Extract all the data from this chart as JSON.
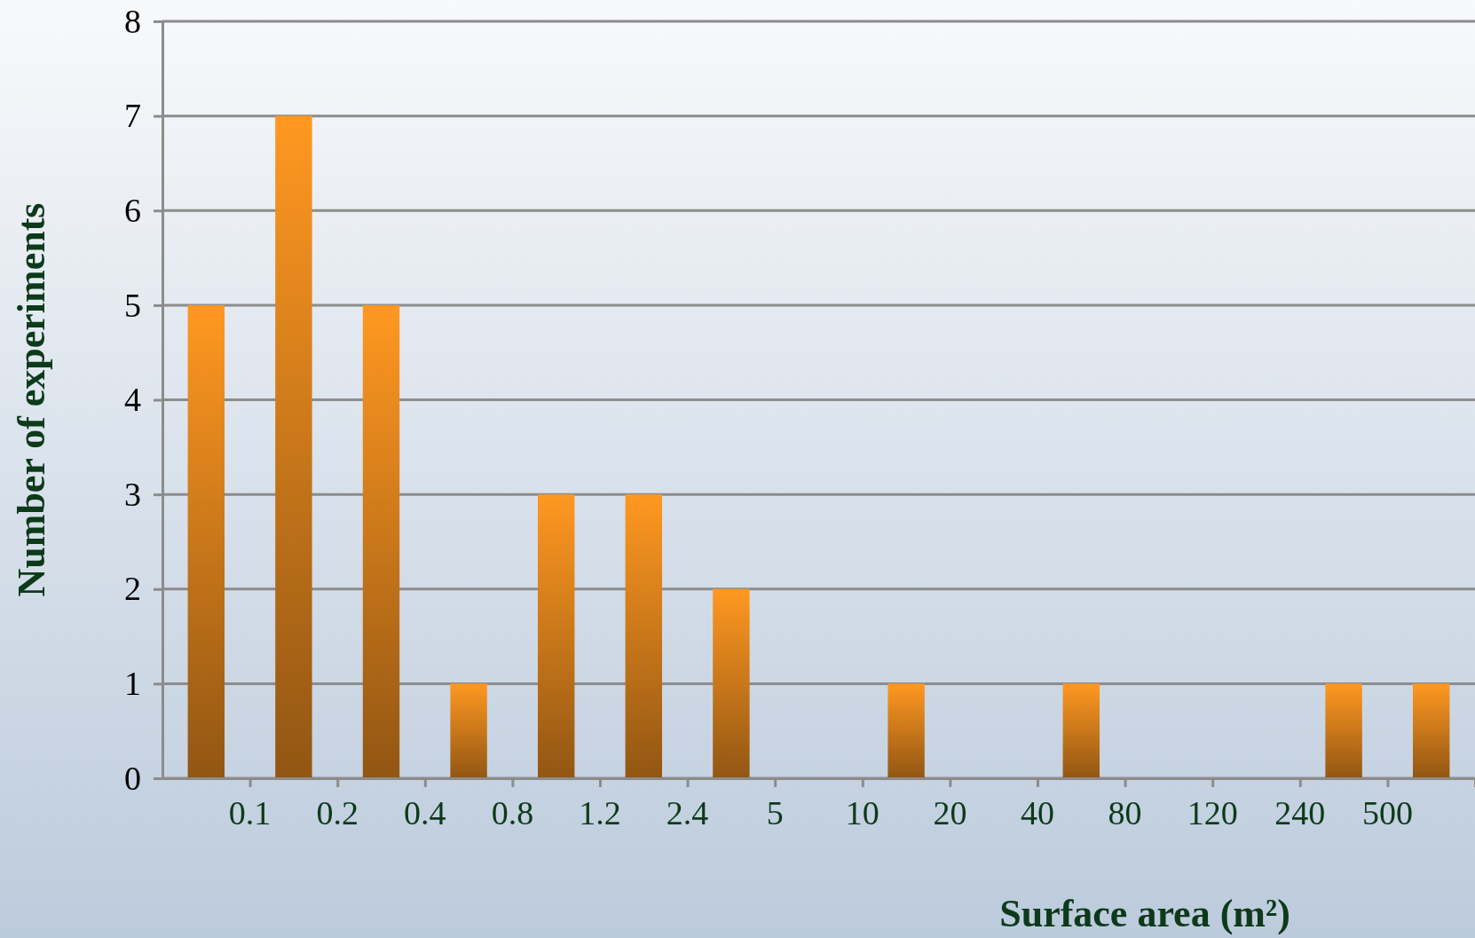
{
  "chart_data": {
    "type": "bar",
    "xlabel": "Surface area (m²)",
    "ylabel": "Number of experiments",
    "categories": [
      null,
      "0.1",
      "0.2",
      "0.4",
      "0.8",
      "1.2",
      "2.4",
      "5",
      "10",
      "20",
      "40",
      "80",
      "120",
      "240",
      "500"
    ],
    "values": [
      5,
      7,
      5,
      1,
      3,
      3,
      2,
      0,
      1,
      0,
      1,
      0,
      0,
      1,
      1
    ],
    "color": "#e8891e",
    "ylim": [
      0,
      8
    ],
    "yticks": [
      0,
      1,
      2,
      3,
      4,
      5,
      6,
      7,
      8
    ],
    "grid": "y"
  }
}
